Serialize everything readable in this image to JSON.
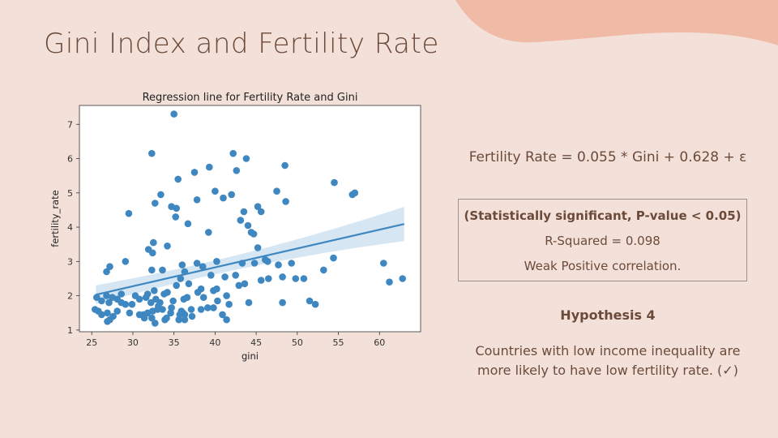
{
  "slide": {
    "title": "Gini Index and Fertility Rate"
  },
  "equation": "Fertility Rate  = 0.055 * Gini + 0.628 + ε",
  "stats": {
    "line1": "(Statistically significant, P-value < 0.05)",
    "line2": "R-Squared = 0.098",
    "line3": "Weak Positive correlation."
  },
  "hypothesis": {
    "title": "Hypothesis 4",
    "line1": "Countries with low income inequality are",
    "line2": "more likely to have low fertility rate. (✓)"
  },
  "colors": {
    "background": "#f3e1d9",
    "blob": "#efbba6",
    "point": "#3e87c0",
    "line": "#3e87c0",
    "ci_band": "#cfe2f1",
    "text": "#6b4a3a"
  },
  "chart_data": {
    "type": "scatter",
    "title": "Regression line for Fertility Rate and Gini",
    "xlabel": "gini",
    "ylabel": "fertility_rate",
    "xlim": [
      23.5,
      65
    ],
    "ylim": [
      0.95,
      7.55
    ],
    "xticks": [
      25,
      30,
      35,
      40,
      45,
      50,
      55,
      60
    ],
    "yticks": [
      1,
      2,
      3,
      4,
      5,
      6,
      7
    ],
    "grid": false,
    "regression": {
      "slope": 0.055,
      "intercept": 0.628,
      "x_range": [
        25.5,
        63
      ],
      "ci": "shaded band"
    },
    "points": [
      [
        35,
        7.3
      ],
      [
        32.3,
        6.15
      ],
      [
        42.2,
        6.15
      ],
      [
        43.8,
        6.0
      ],
      [
        48.5,
        5.8
      ],
      [
        39.3,
        5.75
      ],
      [
        37.5,
        5.6
      ],
      [
        42.6,
        5.65
      ],
      [
        35.5,
        5.4
      ],
      [
        54.5,
        5.3
      ],
      [
        40,
        5.05
      ],
      [
        41,
        4.85
      ],
      [
        42,
        4.95
      ],
      [
        47.5,
        5.05
      ],
      [
        57,
        5.0
      ],
      [
        56.7,
        4.95
      ],
      [
        33.4,
        4.95
      ],
      [
        37.8,
        4.8
      ],
      [
        48.6,
        4.75
      ],
      [
        32.7,
        4.7
      ],
      [
        34.7,
        4.6
      ],
      [
        35.3,
        4.55
      ],
      [
        45.2,
        4.6
      ],
      [
        45.6,
        4.45
      ],
      [
        29.5,
        4.4
      ],
      [
        35.2,
        4.3
      ],
      [
        43.5,
        4.45
      ],
      [
        43.1,
        4.2
      ],
      [
        44,
        4.05
      ],
      [
        36.7,
        4.1
      ],
      [
        39.2,
        3.85
      ],
      [
        44.7,
        3.8
      ],
      [
        44.4,
        3.85
      ],
      [
        45.2,
        3.4
      ],
      [
        32.5,
        3.55
      ],
      [
        34.2,
        3.45
      ],
      [
        31.9,
        3.35
      ],
      [
        54.4,
        3.1
      ],
      [
        46.1,
        3.05
      ],
      [
        32.4,
        3.25
      ],
      [
        40.2,
        3.0
      ],
      [
        37.8,
        2.95
      ],
      [
        43.3,
        2.95
      ],
      [
        44.8,
        2.95
      ],
      [
        46.4,
        3.0
      ],
      [
        47.7,
        2.9
      ],
      [
        36,
        2.9
      ],
      [
        38.5,
        2.85
      ],
      [
        29.1,
        3.0
      ],
      [
        27.2,
        2.85
      ],
      [
        26.8,
        2.7
      ],
      [
        33.6,
        2.75
      ],
      [
        36.3,
        2.7
      ],
      [
        32.3,
        2.75
      ],
      [
        60.5,
        2.95
      ],
      [
        49.3,
        2.95
      ],
      [
        39.5,
        2.6
      ],
      [
        41.2,
        2.55
      ],
      [
        42.5,
        2.6
      ],
      [
        45.6,
        2.45
      ],
      [
        46.5,
        2.5
      ],
      [
        48.2,
        2.55
      ],
      [
        50.8,
        2.5
      ],
      [
        49.8,
        2.5
      ],
      [
        53.2,
        2.75
      ],
      [
        61.2,
        2.4
      ],
      [
        62.8,
        2.5
      ],
      [
        43.6,
        2.35
      ],
      [
        42.9,
        2.3
      ],
      [
        35.8,
        2.5
      ],
      [
        36.8,
        2.35
      ],
      [
        35.3,
        2.3
      ],
      [
        40.2,
        2.2
      ],
      [
        38.3,
        2.2
      ],
      [
        39.8,
        2.15
      ],
      [
        37.9,
        2.1
      ],
      [
        33.8,
        2.05
      ],
      [
        34.2,
        2.1
      ],
      [
        32.6,
        2.15
      ],
      [
        31.8,
        2.05
      ],
      [
        31.6,
        1.95
      ],
      [
        30.3,
        2.0
      ],
      [
        28.6,
        2.05
      ],
      [
        30.8,
        1.9
      ],
      [
        26.8,
        2.0
      ],
      [
        27.5,
        1.95
      ],
      [
        28.1,
        1.9
      ],
      [
        25.6,
        1.95
      ],
      [
        26.2,
        1.85
      ],
      [
        27.1,
        1.8
      ],
      [
        29.1,
        1.75
      ],
      [
        28.6,
        1.8
      ],
      [
        32.8,
        1.9
      ],
      [
        32.2,
        1.8
      ],
      [
        33.3,
        1.8
      ],
      [
        34.9,
        1.85
      ],
      [
        36.2,
        1.9
      ],
      [
        36.6,
        1.95
      ],
      [
        38.6,
        1.95
      ],
      [
        41.4,
        2.0
      ],
      [
        40.3,
        1.85
      ],
      [
        41.7,
        1.75
      ],
      [
        44.1,
        1.8
      ],
      [
        48.2,
        1.8
      ],
      [
        51.5,
        1.85
      ],
      [
        52.2,
        1.75
      ],
      [
        25.4,
        1.6
      ],
      [
        25.8,
        1.55
      ],
      [
        26.2,
        1.45
      ],
      [
        26.9,
        1.5
      ],
      [
        27.6,
        1.4
      ],
      [
        28.1,
        1.55
      ],
      [
        29.6,
        1.5
      ],
      [
        30.8,
        1.45
      ],
      [
        31.3,
        1.45
      ],
      [
        31.8,
        1.5
      ],
      [
        32.4,
        1.55
      ],
      [
        33,
        1.6
      ],
      [
        33.6,
        1.6
      ],
      [
        34.6,
        1.5
      ],
      [
        35.7,
        1.45
      ],
      [
        36.1,
        1.5
      ],
      [
        36.3,
        1.45
      ],
      [
        37.1,
        1.6
      ],
      [
        38.3,
        1.6
      ],
      [
        39.1,
        1.65
      ],
      [
        39.8,
        1.65
      ],
      [
        40.9,
        1.45
      ],
      [
        29.9,
        1.75
      ],
      [
        33.1,
        1.7
      ],
      [
        31.4,
        1.35
      ],
      [
        32.3,
        1.35
      ],
      [
        33.9,
        1.3
      ],
      [
        35.6,
        1.3
      ],
      [
        36.3,
        1.3
      ],
      [
        34.1,
        1.35
      ],
      [
        41.4,
        1.3
      ],
      [
        27.2,
        1.3
      ],
      [
        26.9,
        1.25
      ],
      [
        32.7,
        1.2
      ],
      [
        34.7,
        1.65
      ],
      [
        35.9,
        1.55
      ],
      [
        37.2,
        1.4
      ]
    ]
  }
}
